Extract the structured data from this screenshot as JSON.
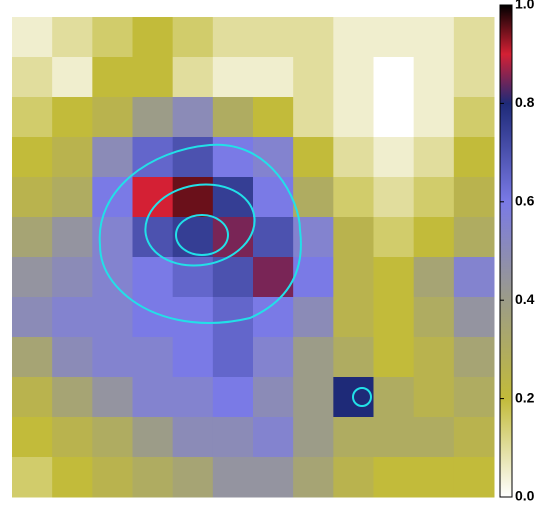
{
  "chart_data": {
    "type": "heatmap",
    "z": [
      [
        0.05,
        0.1,
        0.15,
        0.2,
        0.15,
        0.1,
        0.1,
        0.1,
        0.05,
        0.05,
        0.05,
        0.1
      ],
      [
        0.1,
        0.05,
        0.2,
        0.2,
        0.1,
        0.05,
        0.05,
        0.1,
        0.05,
        0.0,
        0.05,
        0.1
      ],
      [
        0.15,
        0.2,
        0.25,
        0.4,
        0.5,
        0.3,
        0.2,
        0.1,
        0.05,
        0.0,
        0.05,
        0.15
      ],
      [
        0.2,
        0.25,
        0.5,
        0.65,
        0.7,
        0.6,
        0.55,
        0.2,
        0.1,
        0.05,
        0.1,
        0.2
      ],
      [
        0.25,
        0.3,
        0.6,
        0.9,
        0.95,
        0.75,
        0.6,
        0.3,
        0.15,
        0.1,
        0.15,
        0.25
      ],
      [
        0.35,
        0.45,
        0.55,
        0.7,
        0.75,
        0.85,
        0.7,
        0.55,
        0.25,
        0.15,
        0.2,
        0.3
      ],
      [
        0.45,
        0.5,
        0.55,
        0.6,
        0.65,
        0.7,
        0.85,
        0.6,
        0.25,
        0.2,
        0.35,
        0.55
      ],
      [
        0.5,
        0.55,
        0.55,
        0.6,
        0.6,
        0.65,
        0.6,
        0.5,
        0.25,
        0.2,
        0.3,
        0.45
      ],
      [
        0.35,
        0.5,
        0.55,
        0.55,
        0.6,
        0.65,
        0.55,
        0.4,
        0.3,
        0.2,
        0.25,
        0.35
      ],
      [
        0.25,
        0.35,
        0.45,
        0.55,
        0.55,
        0.6,
        0.5,
        0.4,
        0.8,
        0.3,
        0.25,
        0.3
      ],
      [
        0.2,
        0.25,
        0.3,
        0.4,
        0.5,
        0.5,
        0.55,
        0.4,
        0.3,
        0.3,
        0.3,
        0.25
      ],
      [
        0.15,
        0.2,
        0.25,
        0.3,
        0.35,
        0.45,
        0.45,
        0.35,
        0.25,
        0.2,
        0.2,
        0.2
      ]
    ],
    "zlim": [
      0,
      1
    ],
    "zticks": [
      {
        "value": 0,
        "label": "0.0"
      },
      {
        "value": 0.2,
        "label": "0.2"
      },
      {
        "value": 0.4,
        "label": "0.4"
      },
      {
        "value": 0.6,
        "label": "0.6"
      },
      {
        "value": 0.8,
        "label": "0.8"
      },
      {
        "value": 1,
        "label": "1.0"
      }
    ],
    "colormap": [
      {
        "value": 0,
        "color": "#ffffff"
      },
      {
        "value": 0.2,
        "color": "#c2bb3a"
      },
      {
        "value": 0.4,
        "color": "#9c9c88"
      },
      {
        "value": 0.6,
        "color": "#7a7ae6"
      },
      {
        "value": 0.8,
        "color": "#1e2a78"
      },
      {
        "value": 0.9,
        "color": "#d42034"
      },
      {
        "value": 1,
        "color": "#000000"
      }
    ]
  }
}
